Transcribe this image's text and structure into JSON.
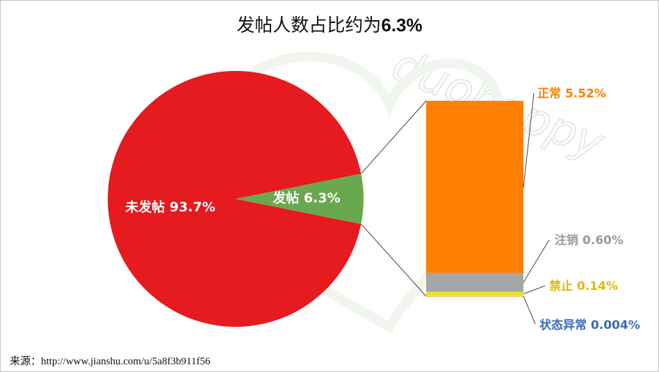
{
  "chart_data": {
    "type": "pie",
    "title_prefix": "发帖人数占比约为",
    "title_value": "6.3%",
    "slices": [
      {
        "label": "未发帖 93.7%",
        "value": 93.7,
        "color": "#e51b1f"
      },
      {
        "label": "发帖 6.3%",
        "value": 6.3,
        "color": "#6aa84f"
      }
    ],
    "breakdown": {
      "type": "stacked-bar",
      "of_slice": "发帖",
      "segments": [
        {
          "label": "状态异常 0.004%",
          "value": 0.004,
          "color": "#f0a020",
          "label_color": "#3c6bb7"
        },
        {
          "label": "禁止 0.14%",
          "value": 0.14,
          "color": "#e6e22e",
          "label_color": "#e6b800"
        },
        {
          "label": "注销 0.60%",
          "value": 0.6,
          "color": "#a6a6a6",
          "label_color": "#9a9a9a"
        },
        {
          "label": "正常 5.52%",
          "value": 5.52,
          "color": "#ff7f00",
          "label_color": "#ff7f00"
        }
      ]
    }
  },
  "watermark": {
    "text": "duohappy"
  },
  "source": {
    "label": "来源：",
    "url": "http://www.jianshu.com/u/5a8f3b911f56"
  }
}
